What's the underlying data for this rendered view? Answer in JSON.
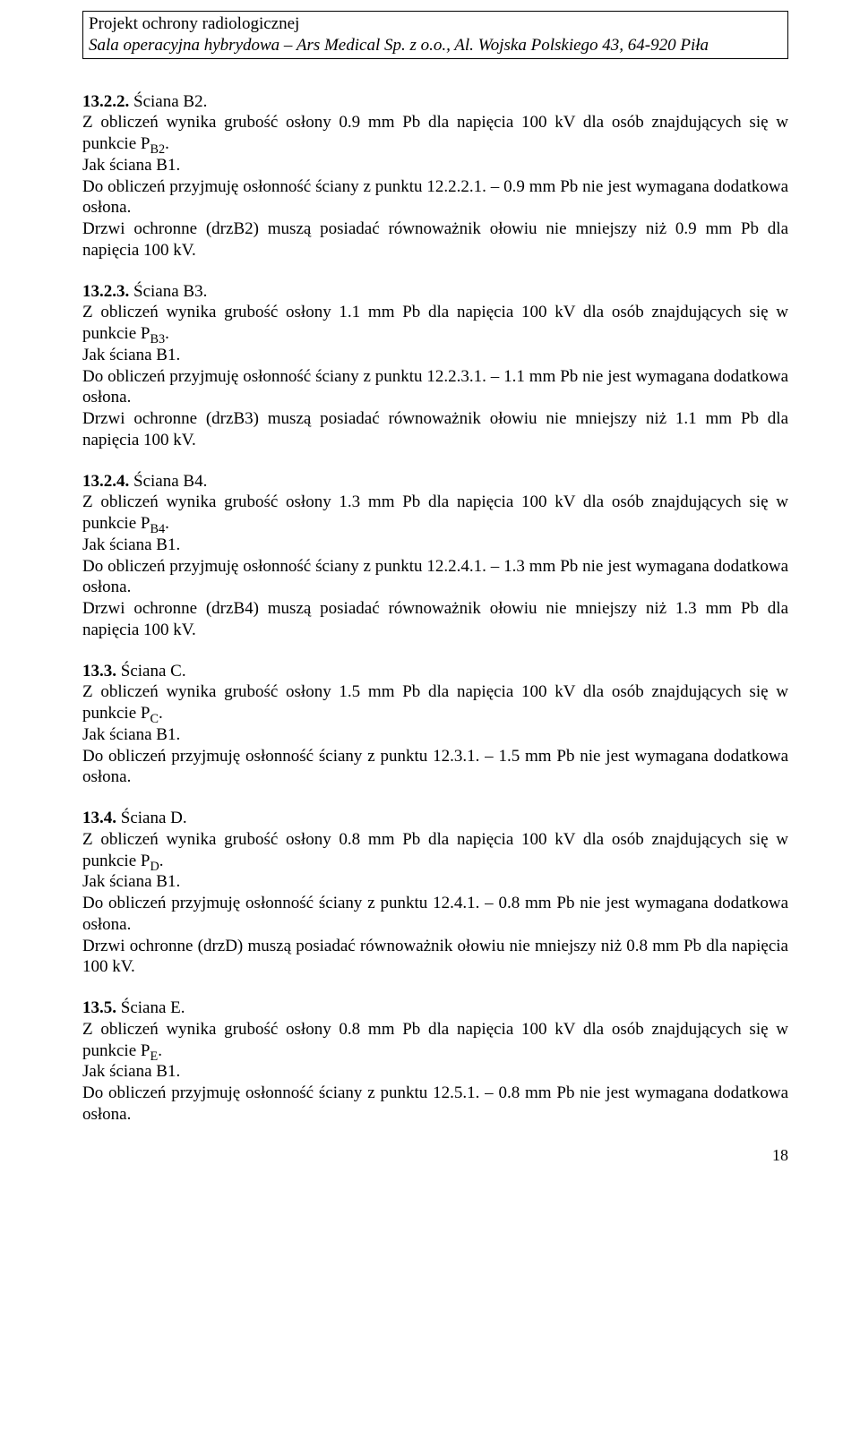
{
  "header": {
    "line1": "Projekt ochrony radiologicznej",
    "line2": "Sala operacyjna hybrydowa – Ars Medical Sp. z o.o., Al. Wojska Polskiego 43, 64-920 Piła"
  },
  "sections": [
    {
      "num": "13.2.2.",
      "title": "Ściana B2.",
      "body_pre": "Z obliczeń wynika grubość osłony 0.9 mm Pb dla napięcia 100 kV dla osób znajdujących się w punkcie P",
      "body_sub": "B2",
      "body_post": ".",
      "line2": "Jak ściana B1.",
      "line3": "Do obliczeń przyjmuję osłonność ściany z punktu 12.2.2.1. – 0.9 mm Pb nie jest wymagana dodatkowa osłona.",
      "line4": "Drzwi ochronne (drzB2) muszą posiadać równoważnik ołowiu nie mniejszy niż 0.9 mm Pb dla napięcia 100 kV."
    },
    {
      "num": "13.2.3.",
      "title": "Ściana B3.",
      "body_pre": "Z obliczeń wynika grubość osłony 1.1 mm Pb dla napięcia 100 kV dla osób znajdujących się w punkcie P",
      "body_sub": "B3",
      "body_post": ".",
      "line2": "Jak ściana B1.",
      "line3": "Do obliczeń przyjmuję osłonność ściany z punktu 12.2.3.1. – 1.1 mm Pb nie jest wymagana dodatkowa osłona.",
      "line4": "Drzwi ochronne (drzB3) muszą posiadać równoważnik ołowiu nie mniejszy niż 1.1 mm Pb dla napięcia 100 kV."
    },
    {
      "num": "13.2.4.",
      "title": "Ściana B4.",
      "body_pre": "Z obliczeń wynika grubość osłony 1.3 mm Pb dla napięcia 100 kV dla osób znajdujących się w punkcie P",
      "body_sub": "B4",
      "body_post": ".",
      "line2": "Jak ściana B1.",
      "line3": "Do obliczeń przyjmuję osłonność ściany z punktu 12.2.4.1. – 1.3 mm Pb nie jest wymagana dodatkowa osłona.",
      "line4": "Drzwi ochronne (drzB4) muszą posiadać równoważnik ołowiu nie mniejszy niż 1.3 mm Pb dla napięcia 100 kV."
    },
    {
      "num": "13.3.",
      "title": "Ściana C.",
      "body_pre": "Z obliczeń wynika grubość osłony 1.5 mm Pb dla napięcia 100 kV dla osób znajdujących się w punkcie P",
      "body_sub": "C",
      "body_post": ".",
      "line2": "Jak ściana B1.",
      "line3": "Do obliczeń przyjmuję osłonność ściany z punktu 12.3.1. – 1.5 mm Pb nie jest wymagana dodatkowa osłona.",
      "line4": ""
    },
    {
      "num": "13.4.",
      "title": "Ściana D.",
      "body_pre": "Z obliczeń wynika grubość osłony 0.8 mm Pb dla napięcia 100 kV dla osób znajdujących się w punkcie P",
      "body_sub": "D",
      "body_post": ".",
      "line2": "Jak ściana B1.",
      "line3": "Do obliczeń przyjmuję osłonność ściany z punktu 12.4.1. – 0.8 mm Pb nie jest wymagana dodatkowa osłona.",
      "line4": "Drzwi ochronne (drzD) muszą posiadać równoważnik ołowiu nie mniejszy niż 0.8 mm Pb dla napięcia 100 kV."
    },
    {
      "num": "13.5.",
      "title": "Ściana E.",
      "body_pre": "Z obliczeń wynika grubość osłony 0.8 mm Pb dla napięcia 100 kV dla osób znajdujących się w punkcie P",
      "body_sub": "E",
      "body_post": ".",
      "line2": "Jak ściana B1.",
      "line3": "Do obliczeń przyjmuję osłonność ściany z punktu 12.5.1. – 0.8 mm Pb nie jest wymagana dodatkowa osłona.",
      "line4": ""
    }
  ],
  "page_number": "18"
}
